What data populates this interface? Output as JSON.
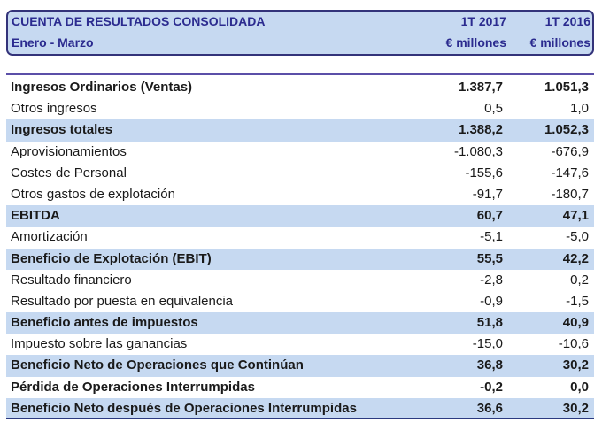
{
  "header": {
    "title": "CUENTA DE RESULTADOS CONSOLIDADA",
    "subtitle": "Enero - Marzo",
    "col1": "1T 2017",
    "col2": "1T 2016",
    "unit1": "€ millones",
    "unit2": "€ millones"
  },
  "rows": [
    {
      "label": "Ingresos Ordinarios (Ventas)",
      "v1": "1.387,7",
      "v2": "1.051,3",
      "bold": true,
      "shade": false
    },
    {
      "label": "Otros ingresos",
      "v1": "0,5",
      "v2": "1,0",
      "bold": false,
      "shade": false
    },
    {
      "label": "Ingresos totales",
      "v1": "1.388,2",
      "v2": "1.052,3",
      "bold": true,
      "shade": true
    },
    {
      "label": "Aprovisionamientos",
      "v1": "-1.080,3",
      "v2": "-676,9",
      "bold": false,
      "shade": false
    },
    {
      "label": "Costes de Personal",
      "v1": "-155,6",
      "v2": "-147,6",
      "bold": false,
      "shade": false
    },
    {
      "label": "Otros gastos de explotación",
      "v1": "-91,7",
      "v2": "-180,7",
      "bold": false,
      "shade": false
    },
    {
      "label": "EBITDA",
      "v1": "60,7",
      "v2": "47,1",
      "bold": true,
      "shade": true
    },
    {
      "label": "Amortización",
      "v1": "-5,1",
      "v2": "-5,0",
      "bold": false,
      "shade": false
    },
    {
      "label": "Beneficio de Explotación (EBIT)",
      "v1": "55,5",
      "v2": "42,2",
      "bold": true,
      "shade": true
    },
    {
      "label": "Resultado financiero",
      "v1": "-2,8",
      "v2": "0,2",
      "bold": false,
      "shade": false
    },
    {
      "label": "Resultado por puesta en equivalencia",
      "v1": "-0,9",
      "v2": "-1,5",
      "bold": false,
      "shade": false
    },
    {
      "label": "Beneficio antes de impuestos",
      "v1": "51,8",
      "v2": "40,9",
      "bold": true,
      "shade": true
    },
    {
      "label": "Impuesto sobre las ganancias",
      "v1": "-15,0",
      "v2": "-10,6",
      "bold": false,
      "shade": false
    },
    {
      "label": "Beneficio Neto de Operaciones que Continúan",
      "v1": "36,8",
      "v2": "30,2",
      "bold": true,
      "shade": true
    },
    {
      "label": "Pérdida de Operaciones Interrumpidas",
      "v1": "-0,2",
      "v2": "0,0",
      "bold": true,
      "shade": false
    },
    {
      "label": "Beneficio Neto después de Operaciones Interrumpidas",
      "v1": "36,6",
      "v2": "30,2",
      "bold": true,
      "shade": true
    }
  ]
}
